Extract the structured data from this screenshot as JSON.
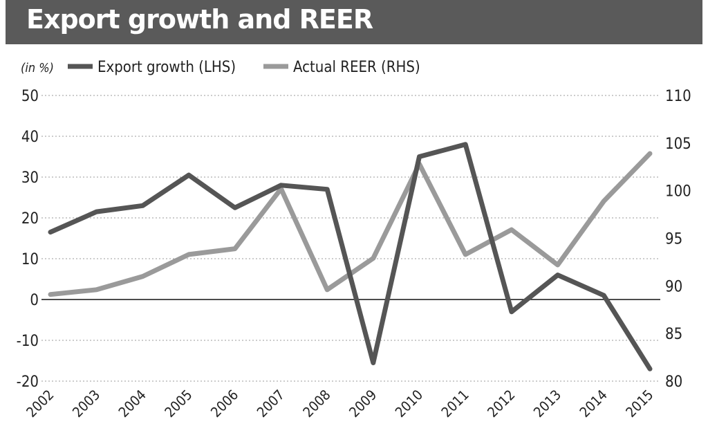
{
  "chart_data": {
    "type": "line",
    "title": "Export growth and REER",
    "unit_label": "(in %)",
    "x": [
      "2002",
      "2003",
      "2004",
      "2005",
      "2006",
      "2007",
      "2008",
      "2009",
      "2010",
      "2011",
      "2012",
      "2013",
      "2014",
      "2015"
    ],
    "y_left": {
      "range": [
        -20,
        50
      ],
      "ticks": [
        50,
        40,
        30,
        20,
        10,
        0,
        -10,
        -20
      ]
    },
    "y_right": {
      "range": [
        80,
        110
      ],
      "ticks": [
        110,
        105,
        100,
        95,
        90,
        85,
        80
      ]
    },
    "grid": "horizontal dotted",
    "legend_position": "top",
    "series": [
      {
        "name": "Export growth (LHS)",
        "axis": "left",
        "color": "#555555",
        "values": [
          16.5,
          21.5,
          23,
          30.5,
          22.5,
          28,
          27,
          -15.5,
          35,
          38,
          -3,
          6,
          1,
          -17
        ]
      },
      {
        "name": "Actual REER (RHS)",
        "axis": "right",
        "color": "#9a9a9a",
        "values": [
          89.1,
          89.6,
          91,
          93.3,
          93.9,
          100.2,
          89.6,
          92.9,
          102.8,
          93.3,
          95.9,
          92.2,
          98.9,
          103.9
        ]
      }
    ]
  }
}
